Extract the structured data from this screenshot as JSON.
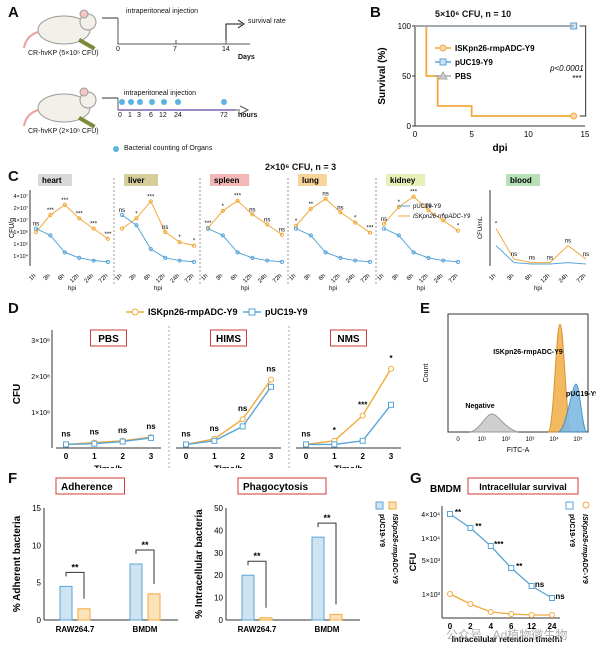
{
  "panels": {
    "A": "A",
    "B": "B",
    "C": "C",
    "D": "D",
    "E": "E",
    "F": "F",
    "G": "G"
  },
  "panelA": {
    "top": {
      "mouse": "CR-hvKP (5×10⁶ CFU)",
      "arrow1": "intraperitoneal injection",
      "arrow2": "survival rate",
      "ticks": [
        "0",
        "7",
        "14"
      ],
      "unit": "Days"
    },
    "bottom": {
      "mouse": "CR-hvKP (2×10⁶ CFU)",
      "arrow1": "intraperitoneal injection",
      "ticks": [
        "0",
        "1",
        "3",
        "6",
        "12",
        "24",
        "72"
      ],
      "unit": "hours",
      "legend": "Bacterial counting of Organs"
    }
  },
  "panelB": {
    "title": "5×10⁶ CFU, n = 10",
    "chart_data": {
      "type": "line",
      "title": "5×10⁶ CFU, n = 10",
      "xlabel": "dpi",
      "ylabel": "Survival (%)",
      "xlim": [
        0,
        15
      ],
      "ylim": [
        0,
        100
      ],
      "xticks": [
        "0",
        "5",
        "10",
        "15"
      ],
      "yticks": [
        "0",
        "50",
        "100"
      ],
      "series": [
        {
          "name": "ISKpn26-rmpADC-Y9",
          "color": "#f2a93b",
          "x": [
            0,
            1,
            1,
            2,
            2,
            5,
            5,
            14
          ],
          "y": [
            100,
            100,
            50,
            50,
            20,
            20,
            10,
            10
          ]
        },
        {
          "name": "pUC19-Y9",
          "color": "#5aa5d6",
          "x": [
            0,
            14
          ],
          "y": [
            100,
            100
          ]
        },
        {
          "name": "PBS",
          "color": "#a9a9a9",
          "x": [
            0,
            14
          ],
          "y": [
            100,
            100
          ]
        }
      ],
      "annotation": "p<0.0001",
      "stars": "***"
    }
  },
  "panelC": {
    "title": "2×10⁶ CFU, n = 3",
    "ylabel": "CFU/g",
    "ylabel_blood": "CFU/mL",
    "xlabel": "hpi",
    "tissues": [
      {
        "name": "heart",
        "color": "#d9d9d9"
      },
      {
        "name": "liver",
        "color": "#d6cf9b"
      },
      {
        "name": "spleen",
        "color": "#f3b7b7"
      },
      {
        "name": "lung",
        "color": "#f7d49a"
      },
      {
        "name": "kidney",
        "color": "#e8f0b8"
      },
      {
        "name": "blood",
        "color": "#b6e0b6"
      }
    ],
    "times": [
      "1h",
      "3h",
      "6h",
      "12h",
      "24h",
      "72h"
    ],
    "yticks": [
      "1×10⁴",
      "1×10⁵",
      "1×10⁶",
      "1×10⁷",
      "2×10⁷",
      "4×10⁷"
    ],
    "legend": [
      "pUC19-Y9",
      "ISKpn26-rmpADC-Y9"
    ],
    "sig_heart": [
      "ns",
      "***",
      "***",
      "***",
      "***",
      "***"
    ],
    "sig_liver": [
      "ns",
      "*",
      "***",
      "ns",
      "*",
      "*"
    ],
    "sig_spleen": [
      "***",
      "*",
      "***",
      "ns",
      "ns",
      "ns"
    ],
    "sig_lung": [
      "*",
      "**",
      "ns",
      "ns",
      "*",
      "***"
    ],
    "sig_kidney": [
      "ns",
      "*",
      "***",
      "ns",
      "*",
      "*"
    ],
    "sig_blood": [
      "*",
      "ns",
      "ns",
      "ns",
      "ns",
      "ns"
    ]
  },
  "panelD": {
    "legend": [
      "ISKpn26-rmpADC-Y9",
      "pUC19-Y9"
    ],
    "ylabel": "CFU",
    "xlabel": "Time/h",
    "yticks": [
      "1×10⁸",
      "2×10⁸",
      "3×10⁸"
    ],
    "groups": [
      {
        "name": "PBS",
        "x": [
          0,
          1,
          2,
          3
        ],
        "orange": [
          0.1,
          0.15,
          0.2,
          0.3
        ],
        "blue": [
          0.1,
          0.12,
          0.18,
          0.28
        ],
        "sig": [
          "ns",
          "ns",
          "ns",
          "ns"
        ]
      },
      {
        "name": "HIMS",
        "x": [
          0,
          1,
          2,
          3
        ],
        "orange": [
          0.1,
          0.25,
          0.8,
          1.9
        ],
        "blue": [
          0.1,
          0.2,
          0.6,
          1.7
        ],
        "sig": [
          "ns",
          "ns",
          "ns",
          "ns"
        ]
      },
      {
        "name": "NMS",
        "x": [
          0,
          1,
          2,
          3
        ],
        "orange": [
          0.1,
          0.2,
          0.9,
          2.2
        ],
        "blue": [
          0.1,
          0.1,
          0.2,
          1.2
        ],
        "sig": [
          "ns",
          "*",
          "***",
          "*"
        ]
      }
    ]
  },
  "panelE": {
    "ylabel": "Count",
    "xlabel": "FITC-A",
    "labels": [
      "ISKpn26-rmpADC-Y9",
      "pUC19-Y9",
      "Negative"
    ],
    "xticks": [
      "0",
      "10¹",
      "10²",
      "10³",
      "10⁴",
      "10⁵"
    ]
  },
  "panelF": {
    "adherence": {
      "title": "Adherence",
      "ylabel": "% Adherent bacteria",
      "yticks": [
        "0",
        "5",
        "10",
        "15"
      ],
      "categories": [
        "RAW264.7",
        "BMDM"
      ],
      "blue": [
        4.5,
        7.5
      ],
      "orange": [
        1.5,
        3.5
      ],
      "sig": [
        "**",
        "**"
      ]
    },
    "phago": {
      "title": "Phagocytosis",
      "ylabel": "% Intracellular bacteria",
      "yticks": [
        "0",
        "10",
        "20",
        "30",
        "40",
        "50"
      ],
      "categories": [
        "RAW264.7",
        "BMDM"
      ],
      "blue": [
        20,
        37
      ],
      "orange": [
        1,
        2.5
      ],
      "sig": [
        "**",
        "**"
      ]
    },
    "legend": [
      "pUC19-Y9",
      "ISKpn26-rmpADC-Y9"
    ]
  },
  "panelG": {
    "celltype": "BMDM",
    "title": "Intracellular survival",
    "ylabel": "CFU",
    "xlabel": "Intracellular retention time(h)",
    "xticks": [
      "0",
      "2",
      "4",
      "6",
      "12",
      "24"
    ],
    "yticks": [
      "1×10³",
      "5×10³",
      "1×10⁴",
      "4×10⁴"
    ],
    "sig": [
      "**",
      "**",
      "***",
      "**",
      "ns",
      "ns"
    ],
    "legend": [
      "pUC19-Y9",
      "ISKpn26-rmpADC-Y9"
    ]
  },
  "watermark": "公众号 · Ad植物微生物",
  "colors": {
    "orange": "#f2a93b",
    "blue": "#5aa5d6",
    "grey": "#a9a9a9",
    "red": "#d23a3a"
  }
}
